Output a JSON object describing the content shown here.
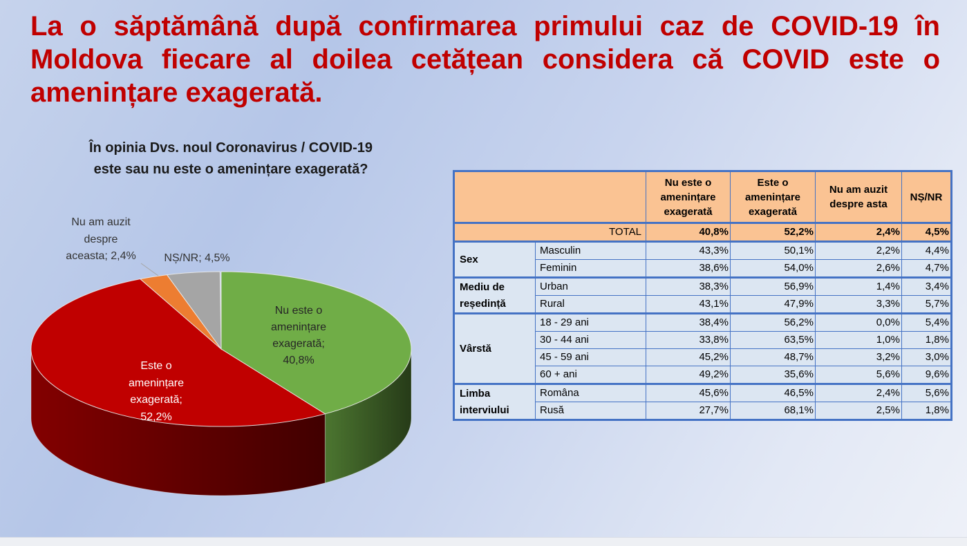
{
  "slide": {
    "title_lines": [
      "La o săptămână după confirmarea primului caz de COVID-19 în",
      "Moldova fiecare al doilea cetățean considera că COVID este o",
      "amenințare exagerată."
    ],
    "title_color": "#C00000"
  },
  "chart_data": [
    {
      "type": "pie",
      "style": "3d",
      "title_lines": [
        "În opinia Dvs. noul Coronavirus / COVID-19",
        "este sau nu este o amenințare exagerată?"
      ],
      "slices": [
        {
          "value": 40.8,
          "label_lines": [
            "Nu este o",
            "amenințare",
            "exagerată;",
            "40,8%"
          ],
          "color": "#70AD47"
        },
        {
          "value": 52.2,
          "label_lines": [
            "Este o",
            "amenințare",
            "exagerată;",
            "52,2%"
          ],
          "color": "#C00000"
        },
        {
          "value": 2.4,
          "label_lines": [
            "Nu am auzit",
            "despre",
            "aceasta; 2,4%"
          ],
          "color": "#ED7D31"
        },
        {
          "value": 4.5,
          "label_lines": [
            "NȘ/NR; 4,5%"
          ],
          "color": "#A5A5A5"
        }
      ]
    },
    {
      "type": "table",
      "columns": [
        "Nu este o amenințare exagerată",
        "Este o amenințare exagerată",
        "Nu am auzit despre asta",
        "NȘ/NR"
      ],
      "total": {
        "label": "TOTAL",
        "values": [
          "40,8%",
          "52,2%",
          "2,4%",
          "4,5%"
        ]
      },
      "groups": [
        {
          "label": "Sex",
          "rows": [
            {
              "label": "Masculin",
              "values": [
                "43,3%",
                "50,1%",
                "2,2%",
                "4,4%"
              ]
            },
            {
              "label": "Feminin",
              "values": [
                "38,6%",
                "54,0%",
                "2,6%",
                "4,7%"
              ]
            }
          ]
        },
        {
          "label": "Mediu de reședință",
          "rows": [
            {
              "label": "Urban",
              "values": [
                "38,3%",
                "56,9%",
                "1,4%",
                "3,4%"
              ]
            },
            {
              "label": "Rural",
              "values": [
                "43,1%",
                "47,9%",
                "3,3%",
                "5,7%"
              ]
            }
          ]
        },
        {
          "label": "Vârstă",
          "rows": [
            {
              "label": "18 - 29 ani",
              "values": [
                "38,4%",
                "56,2%",
                "0,0%",
                "5,4%"
              ]
            },
            {
              "label": "30 - 44 ani",
              "values": [
                "33,8%",
                "63,5%",
                "1,0%",
                "1,8%"
              ]
            },
            {
              "label": "45 - 59 ani",
              "values": [
                "45,2%",
                "48,7%",
                "3,2%",
                "3,0%"
              ]
            },
            {
              "label": "60 + ani",
              "values": [
                "49,2%",
                "35,6%",
                "5,6%",
                "9,6%"
              ]
            }
          ]
        },
        {
          "label": "Limba interviului",
          "rows": [
            {
              "label": "Româna",
              "values": [
                "45,6%",
                "46,5%",
                "2,4%",
                "5,6%"
              ]
            },
            {
              "label": "Rusă",
              "values": [
                "27,7%",
                "68,1%",
                "2,5%",
                "1,8%"
              ]
            }
          ]
        }
      ],
      "colors": {
        "border": "#4472C4",
        "header_bg": "#FAC393",
        "body_bg": "#DCE6F2"
      }
    }
  ]
}
